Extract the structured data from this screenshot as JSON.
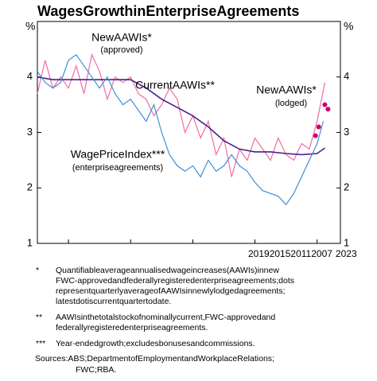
{
  "chart_data": {
    "type": "line",
    "title": "WagesGrowthinEnterpriseAgreements",
    "y_unit_left": "%",
    "y_unit_right": "%",
    "ylim": [
      1,
      5
    ],
    "yticks": [
      1,
      2,
      3,
      4
    ],
    "xlim": [
      2005,
      2024.5
    ],
    "xticks": [
      2019,
      2015,
      2011,
      2007,
      2023
    ],
    "series": [
      {
        "name": "NewAAWIs*",
        "sublabel": "(approved)",
        "color": "#f06ea0",
        "x": [
          2005,
          2005.5,
          2006,
          2006.5,
          2007,
          2007.5,
          2008,
          2008.5,
          2009,
          2009.5,
          2010,
          2010.5,
          2011,
          2011.5,
          2012,
          2012.5,
          2013,
          2013.5,
          2014,
          2014.5,
          2015,
          2015.5,
          2016,
          2016.5,
          2017,
          2017.5,
          2018,
          2018.5,
          2019,
          2019.5,
          2020,
          2020.5,
          2021,
          2021.5,
          2022,
          2022.5,
          2023,
          2023.5
        ],
        "values": [
          3.7,
          4.3,
          3.8,
          4.0,
          3.8,
          4.2,
          3.7,
          4.4,
          4.1,
          3.6,
          4.0,
          3.9,
          4.0,
          3.7,
          3.6,
          3.3,
          3.5,
          3.8,
          3.6,
          3.0,
          3.3,
          2.9,
          3.2,
          2.6,
          2.9,
          2.2,
          2.7,
          2.5,
          2.9,
          2.7,
          2.5,
          2.9,
          2.6,
          2.5,
          2.8,
          2.7,
          3.2,
          3.9
        ]
      },
      {
        "name": "CurrentAAWIs**",
        "color": "#4b1f8c",
        "x": [
          2005,
          2006,
          2007,
          2008,
          2009,
          2010,
          2011,
          2012,
          2013,
          2014,
          2015,
          2016,
          2017,
          2018,
          2019,
          2020,
          2021,
          2022,
          2023,
          2023.5
        ],
        "values": [
          4.0,
          3.95,
          3.95,
          3.95,
          3.95,
          3.95,
          3.95,
          3.8,
          3.6,
          3.45,
          3.3,
          3.1,
          2.85,
          2.7,
          2.65,
          2.65,
          2.62,
          2.6,
          2.62,
          2.72
        ]
      },
      {
        "name": "WagePriceIndex***",
        "sublabel": "(enterpriseagreements)",
        "color": "#3f8fd6",
        "x": [
          2005,
          2005.5,
          2006,
          2006.5,
          2007,
          2007.5,
          2008,
          2008.5,
          2009,
          2009.5,
          2010,
          2010.5,
          2011,
          2011.5,
          2012,
          2012.5,
          2013,
          2013.5,
          2014,
          2014.5,
          2015,
          2015.5,
          2016,
          2016.5,
          2017,
          2017.5,
          2018,
          2018.5,
          2019,
          2019.5,
          2020,
          2020.5,
          2021,
          2021.5,
          2022,
          2022.5,
          2023,
          2023.4
        ],
        "values": [
          4.1,
          3.9,
          3.8,
          3.9,
          4.3,
          4.4,
          4.2,
          4.0,
          3.8,
          4.0,
          3.7,
          3.5,
          3.6,
          3.4,
          3.2,
          3.5,
          3.0,
          2.6,
          2.4,
          2.3,
          2.4,
          2.2,
          2.5,
          2.3,
          2.4,
          2.6,
          2.4,
          2.3,
          2.1,
          1.95,
          1.9,
          1.85,
          1.7,
          1.9,
          2.2,
          2.5,
          2.8,
          3.2
        ]
      },
      {
        "name": "NewAAWIs*",
        "sublabel": "(lodged)",
        "color": "#c8006e",
        "marker": "dot",
        "x": [
          2022.9,
          2023.1,
          2023.5,
          2023.7
        ],
        "values": [
          2.94,
          3.1,
          3.5,
          3.42
        ]
      }
    ],
    "notes": [
      {
        "marker": "*",
        "lines": [
          "Quantifiableaverageannualisedwageincreases(AAWIs)innew",
          "FWC-approvedandfederallyregisteredenterpriseagreements;dots",
          "representquarterlyaverageofAAWIsinnewlylodgedagreements;",
          "latestdotiscurrentquartertodate."
        ]
      },
      {
        "marker": "**",
        "lines": [
          "AAWIsinthetotalstockofnominallycurrent,FWC-approvedand",
          "federallyregisteredenterpriseagreements."
        ]
      },
      {
        "marker": "***",
        "lines": [
          "Year-endedgrowth;excludesbonusesandcommissions."
        ]
      }
    ],
    "source": [
      "Sources:ABS;DepartmentofEmploymentandWorkplaceRelations;",
      "FWC;RBA."
    ]
  }
}
